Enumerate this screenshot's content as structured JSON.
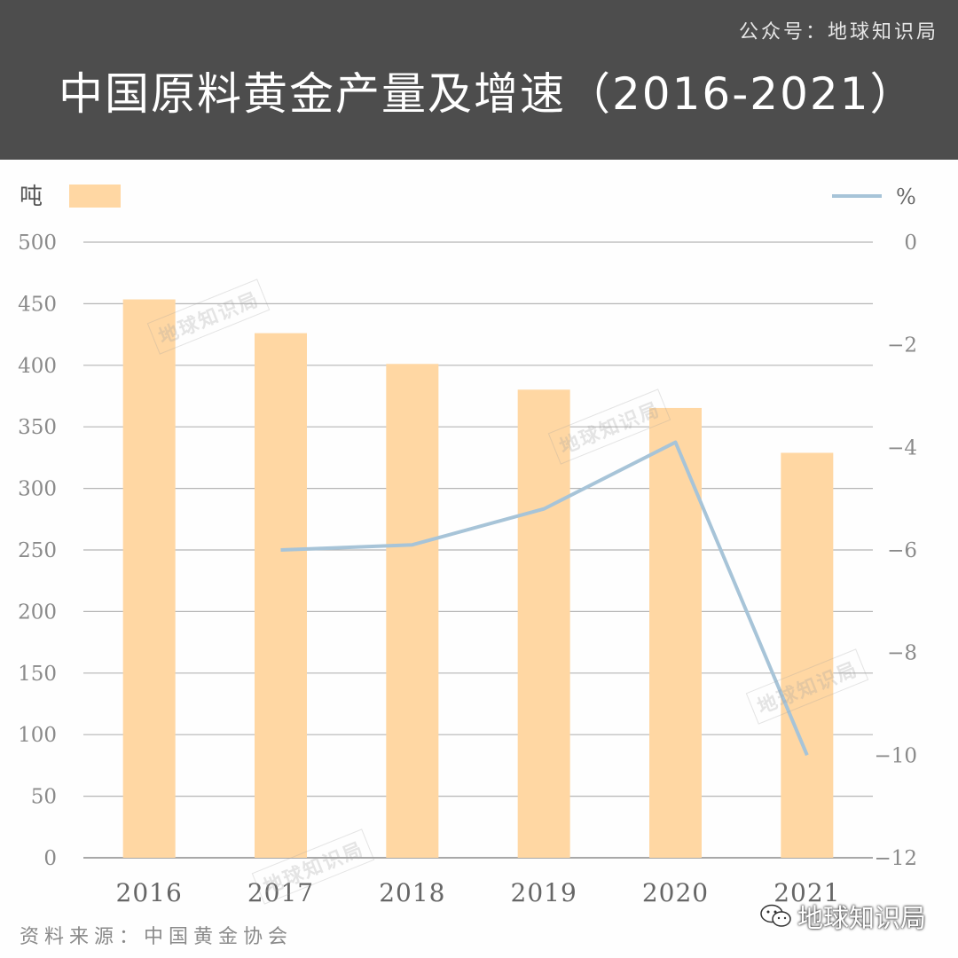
{
  "header": {
    "account": "公众号：地球知识局",
    "title": "中国原料黄金产量及增速（2016-2021）"
  },
  "footer": {
    "source": "资料来源：中国黄金协会",
    "brand": "地球知识局"
  },
  "watermark_text": "地球知识局",
  "colors": {
    "header_bg": "#4d4d4d",
    "bar": "#ffd7a3",
    "line": "#a7c4d8",
    "grid": "#b5b5b5",
    "axis_text": "#8a8a8a"
  },
  "chart_data": {
    "type": "bar+line",
    "categories": [
      "2016",
      "2017",
      "2018",
      "2019",
      "2020",
      "2021"
    ],
    "left_axis": {
      "unit": "吨",
      "ylim": [
        0,
        500
      ],
      "ticks": [
        "0",
        "50",
        "100",
        "150",
        "200",
        "250",
        "300",
        "350",
        "400",
        "450",
        "500"
      ]
    },
    "right_axis": {
      "unit": "%",
      "ylim": [
        -12,
        0
      ],
      "ticks": [
        "0",
        "-2",
        "-4",
        "-6",
        "-8",
        "-10",
        "-12"
      ]
    },
    "series": [
      {
        "kind": "bar",
        "axis": "left",
        "values": [
          453.5,
          426.1,
          401.1,
          380.2,
          365.3,
          328.9
        ]
      },
      {
        "kind": "line",
        "axis": "right",
        "values": [
          null,
          -6.0,
          -5.9,
          -5.2,
          -3.9,
          -10.0
        ]
      }
    ],
    "grid": true,
    "legend": "top"
  }
}
